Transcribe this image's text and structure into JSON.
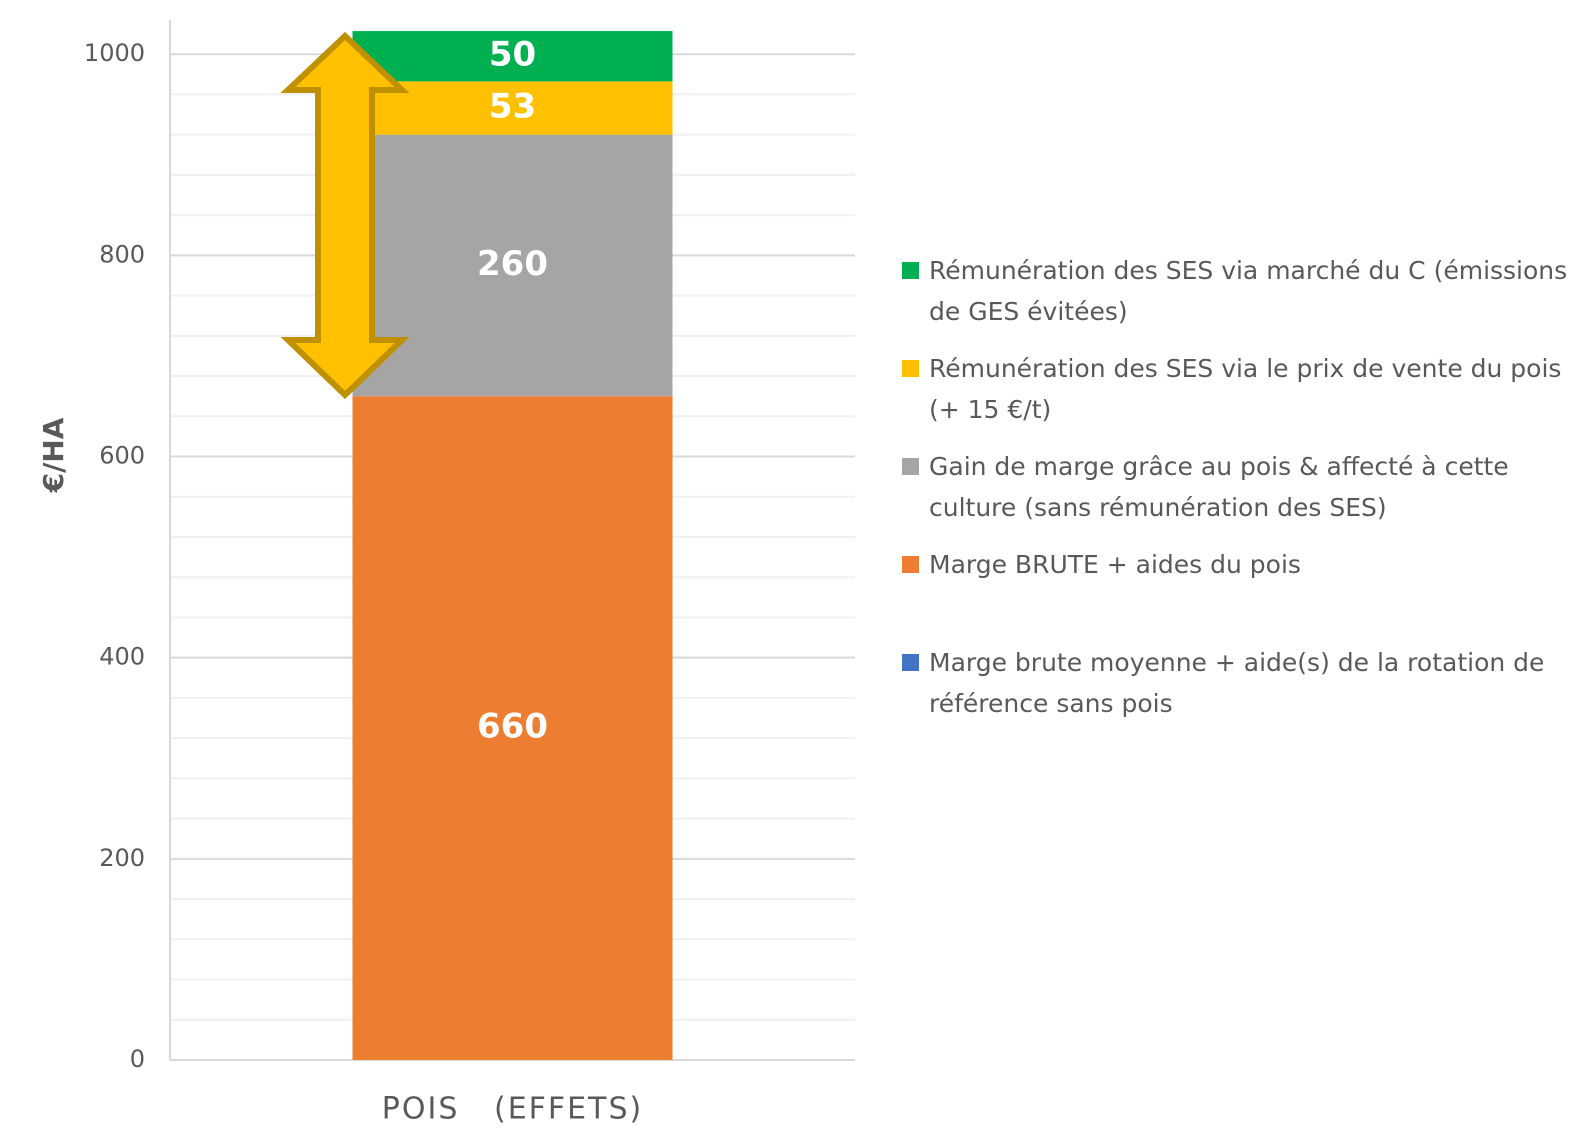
{
  "chart_data": {
    "type": "stacked_bar",
    "categories": [
      "POIS   (EFFETS)"
    ],
    "y_label": "€/HA",
    "series": [
      {
        "name": "Marge brute moyenne + aide(s) de la rotation de référence sans pois",
        "color": "#4472c4",
        "values": [
          null
        ]
      },
      {
        "name": "Marge BRUTE + aides  du pois",
        "color": "#ed7d31",
        "values": [
          660
        ]
      },
      {
        "name": "Gain de marge grâce au pois & affecté à cette culture (sans rémunération des SES)",
        "color": "#a5a5a5",
        "values": [
          260
        ]
      },
      {
        "name": "Rémunération des SES via le prix de vente du pois (+ 15 €/t)",
        "color": "#ffc000",
        "values": [
          53
        ]
      },
      {
        "name": "Rémunération des SES via  marché du C (émissions de GES évitées)",
        "color": "#00b050",
        "values": [
          50
        ]
      }
    ],
    "ylim": [
      0,
      1034
    ],
    "yticks": [
      0,
      200,
      400,
      600,
      800,
      1000
    ],
    "yminorticks": [
      40,
      80,
      120,
      160,
      240,
      280,
      320,
      360,
      440,
      480,
      520,
      560,
      640,
      680,
      720,
      760,
      840,
      880,
      920,
      960
    ],
    "grid": true,
    "legend": "right"
  }
}
